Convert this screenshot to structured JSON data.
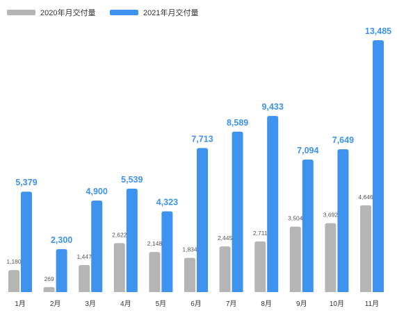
{
  "chart_data": {
    "type": "bar",
    "title": "",
    "xlabel": "",
    "ylabel": "",
    "ylim": [
      0,
      14000
    ],
    "grid": false,
    "legend_position": "top-left",
    "categories": [
      "1月",
      "2月",
      "3月",
      "4月",
      "5月",
      "6月",
      "7月",
      "8月",
      "9月",
      "10月",
      "11月"
    ],
    "series": [
      {
        "name": "2020年月交付量",
        "color": "#b5b5b5",
        "values": [
          1180,
          269,
          1447,
          2622,
          2148,
          1834,
          2445,
          2711,
          3504,
          3692,
          4646
        ],
        "labels": [
          "1,180",
          "269",
          "1,447",
          "2,622",
          "2,148",
          "1,834",
          "2,445",
          "2,711",
          "3,504",
          "3,692",
          "4,646"
        ]
      },
      {
        "name": "2021年月交付量",
        "color": "#3d93ee",
        "values": [
          5379,
          2300,
          4900,
          5539,
          4323,
          7713,
          8589,
          9433,
          7094,
          7649,
          13485
        ],
        "labels": [
          "5,379",
          "2,300",
          "4,900",
          "5,539",
          "4,323",
          "7,713",
          "8,589",
          "9,433",
          "7,094",
          "7,649",
          "13,485"
        ]
      }
    ]
  }
}
